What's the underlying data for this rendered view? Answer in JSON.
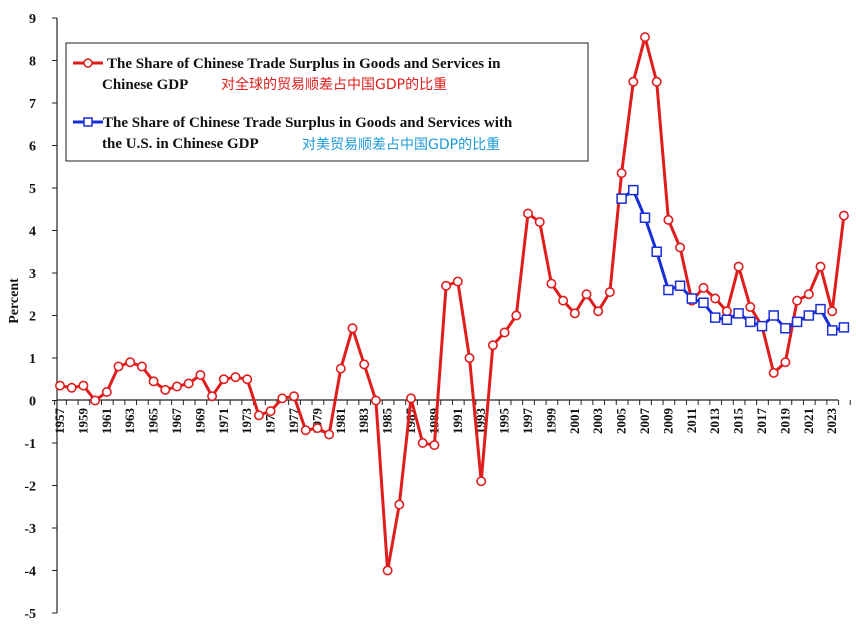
{
  "chart_data": {
    "type": "line",
    "ylabel": "Percent",
    "ylim": [
      -5,
      9
    ],
    "yticks": [
      "9",
      "8",
      "7",
      "6",
      "5",
      "4",
      "3",
      "2",
      "1",
      "0",
      "-1",
      "-2",
      "-3",
      "-4",
      "-5"
    ],
    "xlim": [
      1957,
      2024
    ],
    "xticks": [
      "1957",
      "1959",
      "1961",
      "1963",
      "1965",
      "1967",
      "1969",
      "1971",
      "1973",
      "1975",
      "1977",
      "1979",
      "1981",
      "1983",
      "1985",
      "1987",
      "1989",
      "1991",
      "1993",
      "1995",
      "1997",
      "1999",
      "2001",
      "2003",
      "2005",
      "2007",
      "2009",
      "2011",
      "2013",
      "2015",
      "2017",
      "2019",
      "2021",
      "2023"
    ],
    "grid": false,
    "legend_position": "top-left",
    "series": [
      {
        "name": "The Share of Chinese Trade Surplus in Goods and Services in Chinese GDP",
        "name_line1": "The Share of Chinese Trade Surplus in Goods and Services in",
        "name_line2": "Chinese GDP",
        "name_cn": "对全球的贸易顺差占中国GDP的比重",
        "color": "#e01d1d",
        "marker": "circle",
        "x": [
          1957,
          1958,
          1959,
          1960,
          1961,
          1962,
          1963,
          1964,
          1965,
          1966,
          1967,
          1968,
          1969,
          1970,
          1971,
          1972,
          1973,
          1974,
          1975,
          1976,
          1977,
          1978,
          1979,
          1980,
          1981,
          1982,
          1983,
          1984,
          1985,
          1986,
          1987,
          1988,
          1989,
          1990,
          1991,
          1992,
          1993,
          1994,
          1995,
          1996,
          1997,
          1998,
          1999,
          2000,
          2001,
          2002,
          2003,
          2004,
          2005,
          2006,
          2007,
          2008,
          2009,
          2010,
          2011,
          2012,
          2013,
          2014,
          2015,
          2016,
          2017,
          2018,
          2019,
          2020,
          2021,
          2022,
          2023,
          2024
        ],
        "values": [
          0.35,
          0.3,
          0.35,
          0.0,
          0.2,
          0.8,
          0.9,
          0.8,
          0.45,
          0.25,
          0.33,
          0.4,
          0.6,
          0.1,
          0.5,
          0.55,
          0.5,
          -0.35,
          -0.25,
          0.05,
          0.1,
          -0.7,
          -0.65,
          -0.8,
          0.75,
          1.7,
          0.85,
          0.0,
          -4.0,
          -2.45,
          0.05,
          -1.0,
          -1.05,
          2.7,
          2.8,
          1.0,
          -1.9,
          1.3,
          1.6,
          2.0,
          4.4,
          4.2,
          2.75,
          2.35,
          2.05,
          2.5,
          2.1,
          2.55,
          5.35,
          7.5,
          8.55,
          7.5,
          4.25,
          3.6,
          2.35,
          2.65,
          2.4,
          2.1,
          3.15,
          2.2,
          1.75,
          0.65,
          0.9,
          2.35,
          2.5,
          3.15,
          2.1,
          4.35
        ]
      },
      {
        "name": "The Share of Chinese Trade Surplus in Goods and Services with the U.S. in Chinese GDP",
        "name_line1": "The Share of Chinese Trade Surplus in Goods and Services with",
        "name_line2": "the U.S. in Chinese GDP",
        "name_cn": "对美贸易顺差占中国GDP的比重",
        "color": "#1a2ed6",
        "name_cn_color": "#1d9ad6",
        "marker": "square",
        "x": [
          2005,
          2006,
          2007,
          2008,
          2009,
          2010,
          2011,
          2012,
          2013,
          2014,
          2015,
          2016,
          2017,
          2018,
          2019,
          2020,
          2021,
          2022,
          2023,
          2024
        ],
        "values": [
          4.75,
          4.95,
          4.3,
          3.5,
          2.6,
          2.7,
          2.4,
          2.3,
          1.95,
          1.9,
          2.05,
          1.85,
          1.75,
          2.0,
          1.7,
          1.85,
          2.0,
          2.15,
          1.65,
          1.72
        ]
      }
    ]
  }
}
